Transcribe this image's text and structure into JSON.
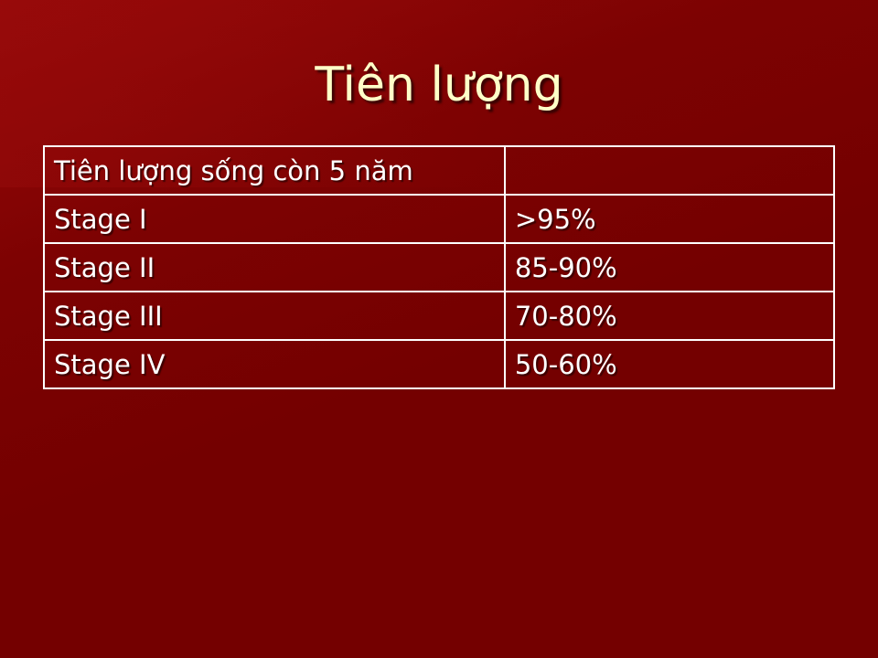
{
  "slide": {
    "title": "Tiên lượng",
    "colors": {
      "background": "#740000",
      "title_text": "#ffffc8",
      "table_text": "#ffffff",
      "table_border": "#ffffff"
    }
  },
  "table": {
    "header": {
      "label": "Tiên lượng sống còn 5 năm",
      "value": ""
    },
    "rows": [
      {
        "label": "Stage I",
        "value": ">95%"
      },
      {
        "label": "Stage II",
        "value": "85-90%"
      },
      {
        "label": "Stage III",
        "value": "70-80%"
      },
      {
        "label": "Stage IV",
        "value": "50-60%"
      }
    ]
  }
}
